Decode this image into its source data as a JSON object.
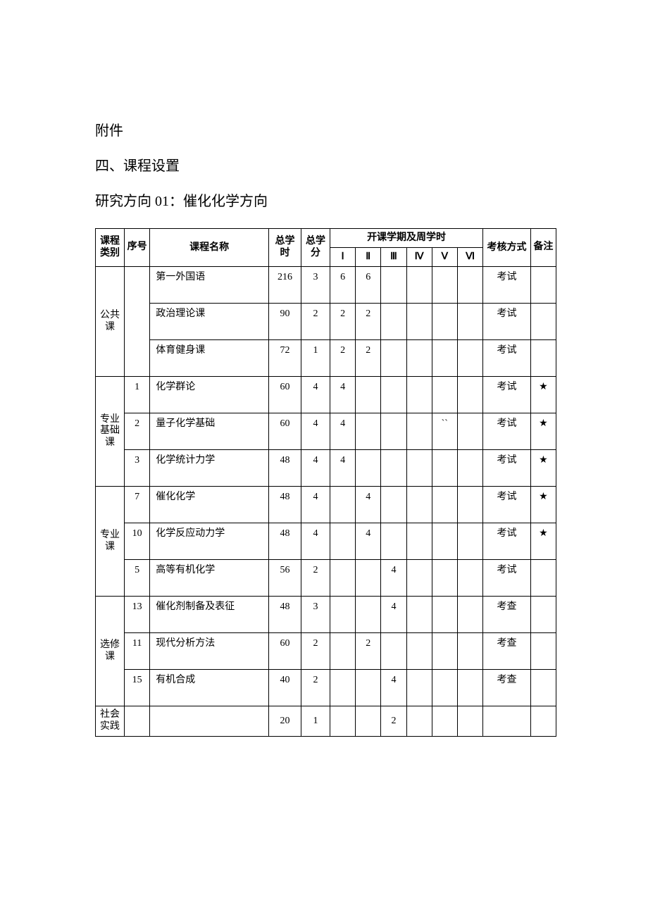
{
  "headings": {
    "attachment": "附件",
    "section": "四、课程设置",
    "direction": "研究方向 01：催化化学方向"
  },
  "table": {
    "header": {
      "category": "课程类别",
      "seq": "序号",
      "name": "课程名称",
      "total_hours": "总学时",
      "total_credits": "总学分",
      "semester_group": "开课学期及周学时",
      "sem1": "Ⅰ",
      "sem2": "Ⅱ",
      "sem3": "Ⅲ",
      "sem4": "Ⅳ",
      "sem5": "Ⅴ",
      "sem6": "Ⅵ",
      "assess": "考核方式",
      "note": "备注"
    },
    "star": "★",
    "assess_test": "考试",
    "assess_check": "考查",
    "categories": {
      "public": "公共课",
      "major_basic": "专业基础课",
      "major": "专业课",
      "elective": "选修课",
      "social": "社会实践"
    },
    "rows": {
      "r1": {
        "name": "第一外国语",
        "hours": "216",
        "credits": "3",
        "s1": "6",
        "s2": "6"
      },
      "r2": {
        "name": "政治理论课",
        "hours": "90",
        "credits": "2",
        "s1": "2",
        "s2": "2"
      },
      "r3": {
        "name": "体育健身课",
        "hours": "72",
        "credits": "1",
        "s1": "2",
        "s2": "2"
      },
      "r4": {
        "seq": "1",
        "name": "化学群论",
        "hours": "60",
        "credits": "4",
        "s1": "4"
      },
      "r5": {
        "seq": "2",
        "name": "量子化学基础",
        "hours": "60",
        "credits": "4",
        "s1": "4",
        "s5": "``"
      },
      "r6": {
        "seq": "3",
        "name": "化学统计力学",
        "hours": "48",
        "credits": "4",
        "s1": "4"
      },
      "r7": {
        "seq": "7",
        "name": "催化化学",
        "hours": "48",
        "credits": "4",
        "s2": "4"
      },
      "r8": {
        "seq": "10",
        "name": "化学反应动力学",
        "hours": "48",
        "credits": "4",
        "s2": "4"
      },
      "r9": {
        "seq": "5",
        "name": "高等有机化学",
        "hours": "56",
        "credits": "2",
        "s3": "4"
      },
      "r10": {
        "seq": "13",
        "name": "催化剂制备及表征",
        "hours": "48",
        "credits": "3",
        "s3": "4"
      },
      "r11": {
        "seq": "11",
        "name": "现代分析方法",
        "hours": "60",
        "credits": "2",
        "s2": "2"
      },
      "r12": {
        "seq": "15",
        "name": "有机合成",
        "hours": "40",
        "credits": "2",
        "s3": "4"
      },
      "r13": {
        "hours": "20",
        "credits": "1",
        "s3": "2"
      }
    }
  }
}
